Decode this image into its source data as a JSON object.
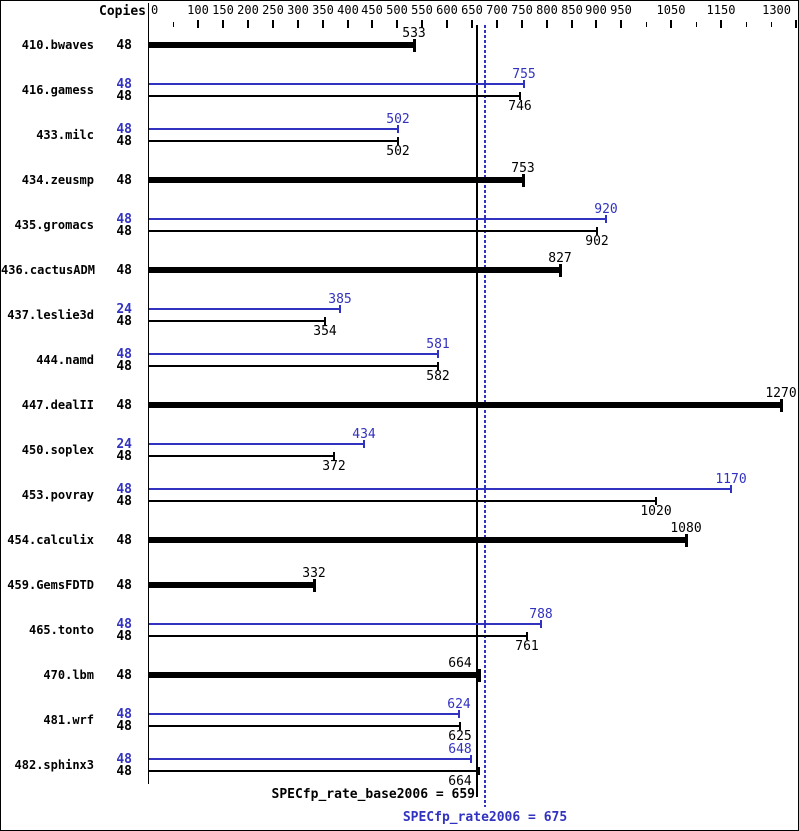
{
  "header": {
    "copies_label": "Copies"
  },
  "colors": {
    "peak": "#3232c0",
    "base": "#000000",
    "background": "#ffffff"
  },
  "summary": {
    "base_label": "SPECfp_rate_base2006 = 659",
    "peak_label": "SPECfp_rate2006 = 675",
    "base_value": 659,
    "peak_value": 675
  },
  "chart_data": {
    "type": "bar",
    "orientation": "horizontal",
    "title": "",
    "xlabel": "",
    "ylabel": "Copies",
    "grid": false,
    "legend_position": "none",
    "axis": {
      "min": 0,
      "max": 1300,
      "major_ticks": [
        0,
        100,
        150,
        200,
        250,
        300,
        350,
        400,
        450,
        500,
        550,
        600,
        650,
        700,
        750,
        800,
        850,
        900,
        950,
        1050,
        1150,
        1300
      ],
      "minor_ticks": [
        50,
        1000,
        1100,
        1200,
        1250
      ]
    },
    "rulers": [
      {
        "name": "SPECfp_rate_base2006",
        "value": 659,
        "style": "solid",
        "color": "#000000"
      },
      {
        "name": "SPECfp_rate2006",
        "value": 675,
        "style": "dotted",
        "color": "#3232c0"
      }
    ],
    "benchmarks": [
      {
        "name": "410.bwaves",
        "base_copies": 48,
        "base": 533
      },
      {
        "name": "416.gamess",
        "peak_copies": 48,
        "peak": 755,
        "base_copies": 48,
        "base": 746
      },
      {
        "name": "433.milc",
        "peak_copies": 48,
        "peak": 502,
        "base_copies": 48,
        "base": 502
      },
      {
        "name": "434.zeusmp",
        "base_copies": 48,
        "base": 753
      },
      {
        "name": "435.gromacs",
        "peak_copies": 48,
        "peak": 920,
        "base_copies": 48,
        "base": 902
      },
      {
        "name": "436.cactusADM",
        "base_copies": 48,
        "base": 827
      },
      {
        "name": "437.leslie3d",
        "peak_copies": 24,
        "peak": 385,
        "base_copies": 48,
        "base": 354
      },
      {
        "name": "444.namd",
        "peak_copies": 48,
        "peak": 581,
        "base_copies": 48,
        "base": 582
      },
      {
        "name": "447.dealII",
        "base_copies": 48,
        "base": 1270
      },
      {
        "name": "450.soplex",
        "peak_copies": 24,
        "peak": 434,
        "base_copies": 48,
        "base": 372
      },
      {
        "name": "453.povray",
        "peak_copies": 48,
        "peak": 1170,
        "base_copies": 48,
        "base": 1020
      },
      {
        "name": "454.calculix",
        "base_copies": 48,
        "base": 1080
      },
      {
        "name": "459.GemsFDTD",
        "base_copies": 48,
        "base": 332
      },
      {
        "name": "465.tonto",
        "peak_copies": 48,
        "peak": 788,
        "base_copies": 48,
        "base": 761
      },
      {
        "name": "470.lbm",
        "base_copies": 48,
        "base": 664
      },
      {
        "name": "481.wrf",
        "peak_copies": 48,
        "peak": 624,
        "base_copies": 48,
        "base": 625
      },
      {
        "name": "482.sphinx3",
        "peak_copies": 48,
        "peak": 648,
        "base_copies": 48,
        "base": 664
      }
    ]
  }
}
